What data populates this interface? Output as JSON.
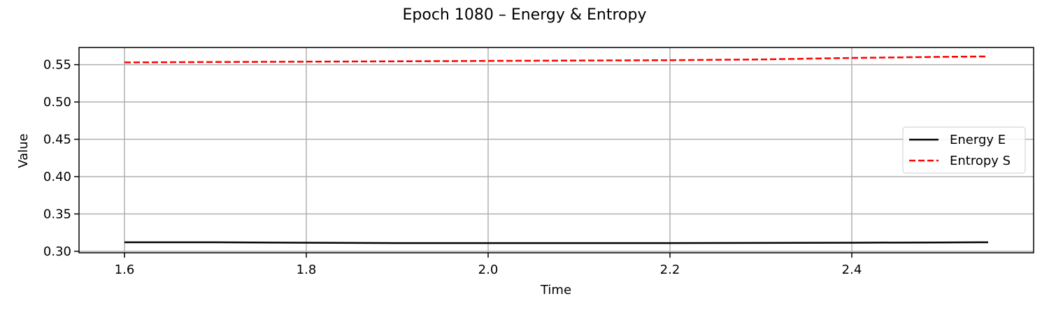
{
  "chart_data": {
    "type": "line",
    "title": "Epoch 1080 – Energy & Entropy",
    "xlabel": "Time",
    "ylabel": "Value",
    "xlim": [
      1.55,
      2.6
    ],
    "ylim": [
      0.298,
      0.573
    ],
    "xticks": [
      1.6,
      1.8,
      2.0,
      2.2,
      2.4
    ],
    "xtick_labels": [
      "1.6",
      "1.8",
      "2.0",
      "2.2",
      "2.4"
    ],
    "yticks": [
      0.3,
      0.35,
      0.4,
      0.45,
      0.5,
      0.55
    ],
    "ytick_labels": [
      "0.30",
      "0.35",
      "0.40",
      "0.45",
      "0.50",
      "0.55"
    ],
    "grid": true,
    "legend_position": "center-right",
    "series": [
      {
        "name": "Energy E",
        "color": "#000000",
        "style": "solid",
        "x": [
          1.6,
          1.7,
          1.8,
          1.9,
          2.0,
          2.1,
          2.2,
          2.3,
          2.4,
          2.5,
          2.55
        ],
        "y": [
          0.312,
          0.312,
          0.3115,
          0.311,
          0.311,
          0.311,
          0.311,
          0.3112,
          0.3115,
          0.3118,
          0.312
        ]
      },
      {
        "name": "Entropy S",
        "color": "#ff0000",
        "style": "dashed",
        "x": [
          1.6,
          1.7,
          1.8,
          1.9,
          2.0,
          2.1,
          2.2,
          2.3,
          2.4,
          2.5,
          2.55
        ],
        "y": [
          0.553,
          0.5535,
          0.554,
          0.5545,
          0.555,
          0.5555,
          0.556,
          0.557,
          0.559,
          0.5605,
          0.561
        ]
      }
    ]
  }
}
